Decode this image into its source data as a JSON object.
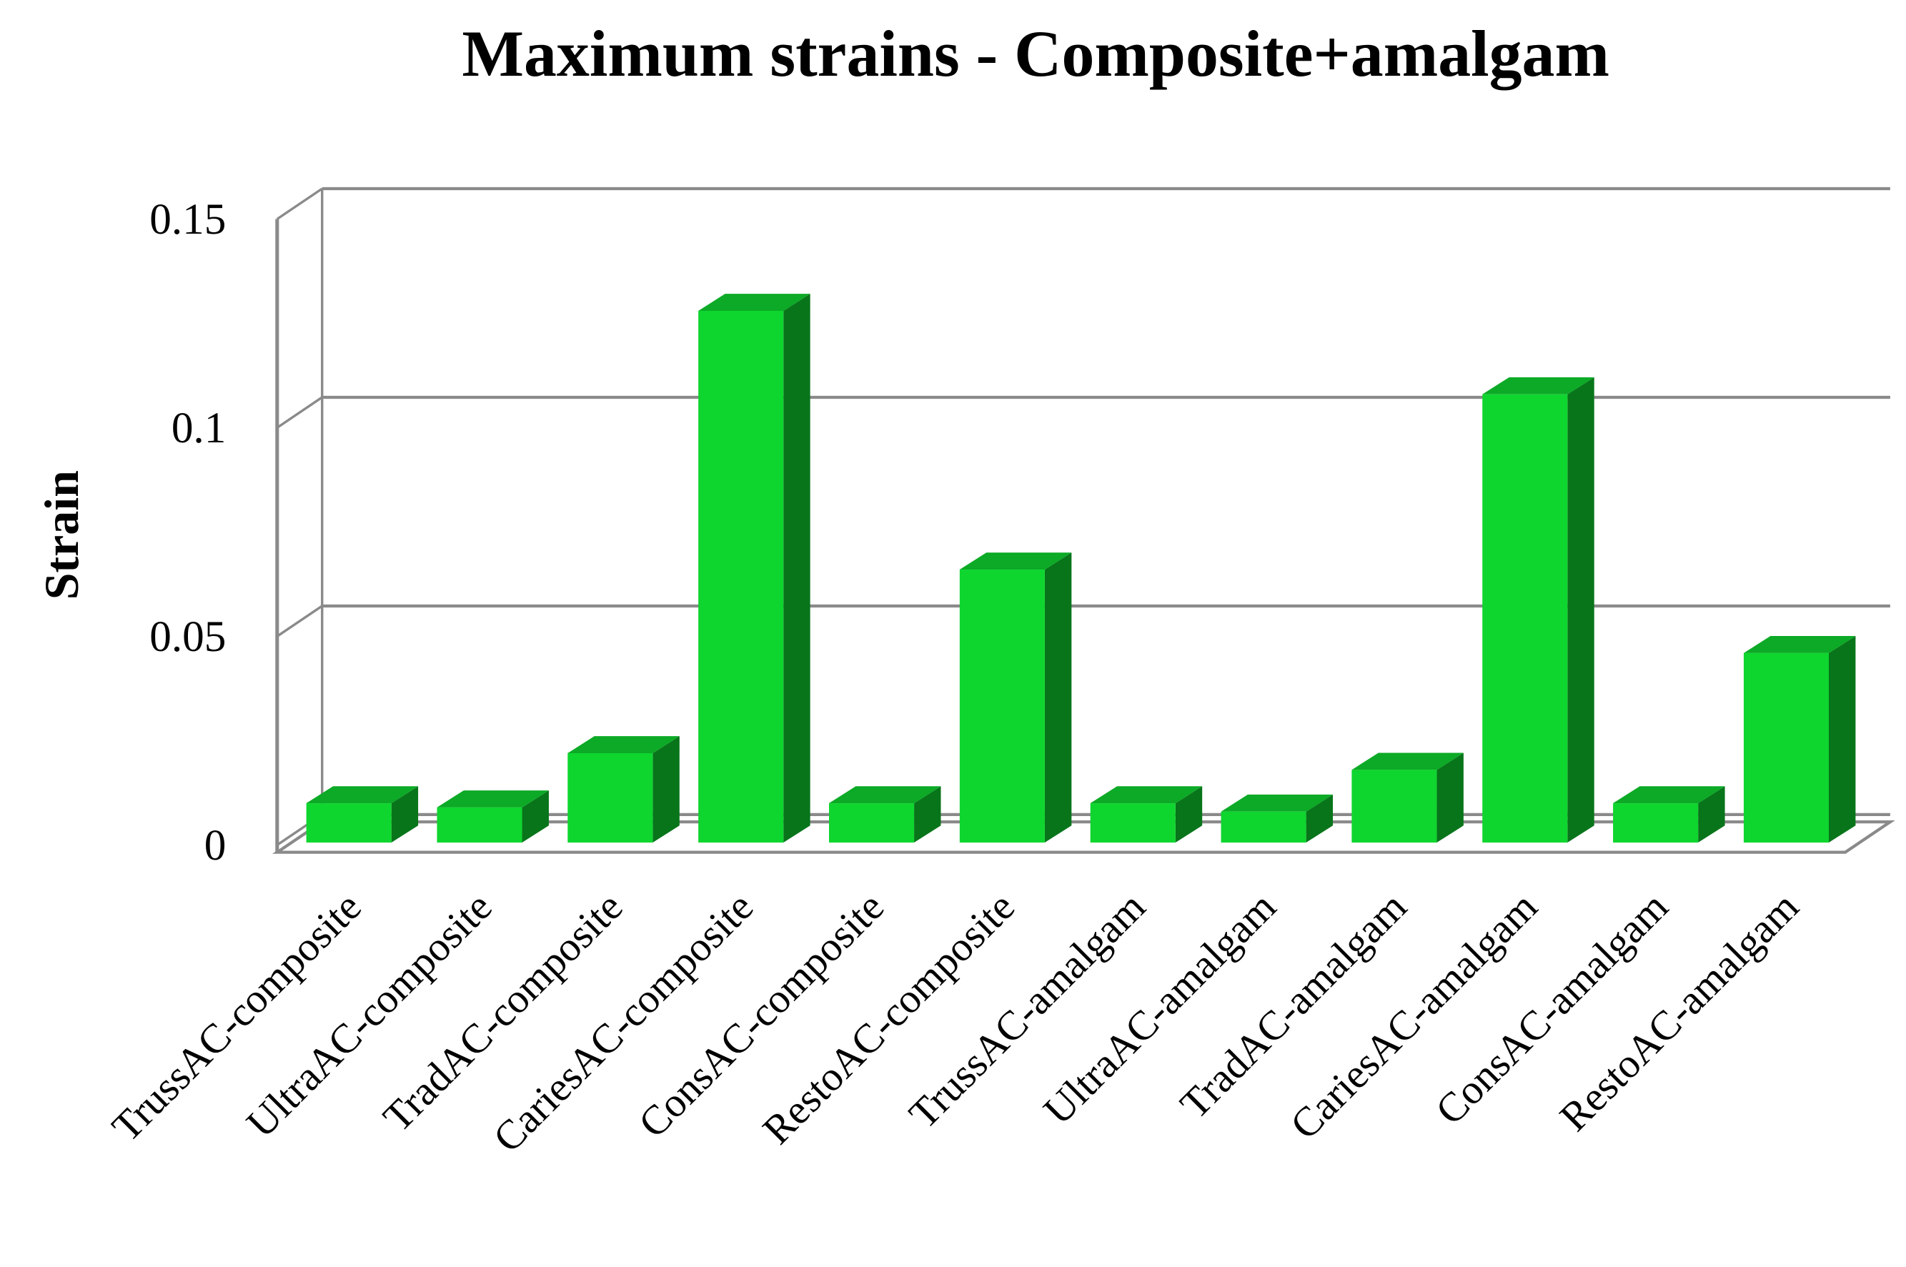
{
  "chart_data": {
    "type": "bar3d",
    "title": "Maximum strains - Composite+amalgam",
    "y_label": "Strain",
    "categories": [
      "TrussAC-composite",
      "UltraAC-composite",
      "TradAC-composite",
      "CariesAC-composite",
      "ConsAC-composite",
      "RestoAC-composite",
      "TrussAC-amalgam",
      "UltraAC-amalgam",
      "TradAC-amalgam",
      "CariesAC-amalgam",
      "ConsAC-amalgam",
      "RestoAC-amalgam"
    ],
    "values": [
      0.01,
      0.009,
      0.022,
      0.128,
      0.01,
      0.066,
      0.01,
      0.008,
      0.018,
      0.108,
      0.01,
      0.046
    ],
    "color": "#0fd52f",
    "ylim": [
      0,
      0.15
    ],
    "yticks": [
      0,
      0.05,
      0.1,
      0.15
    ],
    "grid": true
  }
}
